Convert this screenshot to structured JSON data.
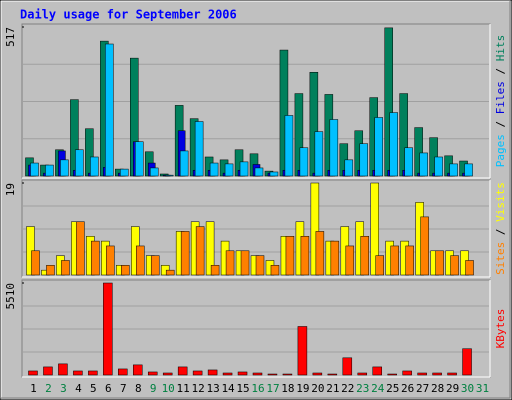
{
  "title": "Daily usage for September 2006",
  "chart_data": [
    {
      "type": "bar",
      "ylim": [
        0,
        517
      ],
      "yticks": [
        517
      ],
      "legend_separator": "/",
      "categories": [
        "1",
        "2",
        "3",
        "4",
        "5",
        "6",
        "7",
        "8",
        "9",
        "10",
        "11",
        "12",
        "13",
        "14",
        "15",
        "16",
        "17",
        "18",
        "19",
        "20",
        "21",
        "22",
        "23",
        "24",
        "25",
        "26",
        "27",
        "28",
        "29",
        "30",
        "31"
      ],
      "category_colors": [
        "#000000",
        "#008040",
        "#008040",
        "#000000",
        "#000000",
        "#000000",
        "#000000",
        "#000000",
        "#008040",
        "#008040",
        "#000000",
        "#000000",
        "#000000",
        "#000000",
        "#000000",
        "#008040",
        "#008040",
        "#000000",
        "#000000",
        "#000000",
        "#000000",
        "#000000",
        "#008040",
        "#008040",
        "#000000",
        "#000000",
        "#000000",
        "#000000",
        "#000000",
        "#008040",
        "#008040"
      ],
      "series": [
        {
          "name": "Hits",
          "color": "#00805c",
          "values": [
            63,
            38,
            91,
            265,
            164,
            468,
            24,
            409,
            84,
            7,
            245,
            199,
            66,
            56,
            91,
            77,
            17,
            437,
            286,
            360,
            283,
            112,
            157,
            272,
            514,
            286,
            168,
            133,
            70,
            52,
            0
          ]
        },
        {
          "name": "Files",
          "color": "#0000e0",
          "values": [
            38,
            10,
            87,
            20,
            10,
            30,
            10,
            119,
            45,
            3,
            157,
            20,
            20,
            10,
            20,
            40,
            10,
            20,
            20,
            10,
            20,
            20,
            20,
            20,
            20,
            20,
            10,
            10,
            10,
            10,
            0
          ]
        },
        {
          "name": "Pages",
          "color": "#00c0ff",
          "values": [
            45,
            38,
            56,
            91,
            66,
            458,
            24,
            119,
            28,
            3,
            87,
            189,
            45,
            42,
            49,
            28,
            14,
            210,
            98,
            154,
            196,
            56,
            112,
            203,
            220,
            98,
            80,
            66,
            42,
            42,
            0
          ]
        }
      ]
    },
    {
      "type": "bar",
      "ylim": [
        0,
        19
      ],
      "yticks": [
        19
      ],
      "legend_separator": "/",
      "series": [
        {
          "name": "Visits",
          "color": "#ffff00",
          "values": [
            10,
            1,
            4,
            11,
            8,
            7,
            2,
            10,
            4,
            2,
            9,
            11,
            11,
            7,
            5,
            4,
            3,
            8,
            11,
            19,
            7,
            10,
            11,
            19,
            7,
            7,
            15,
            5,
            5,
            5,
            0
          ]
        },
        {
          "name": "Sites",
          "color": "#ff8000",
          "values": [
            5,
            2,
            3,
            11,
            7,
            6,
            2,
            6,
            4,
            1,
            9,
            10,
            2,
            5,
            5,
            4,
            2,
            8,
            8,
            9,
            7,
            6,
            8,
            4,
            6,
            6,
            12,
            5,
            4,
            3,
            0
          ]
        }
      ]
    },
    {
      "type": "bar",
      "ylim": [
        0,
        5510
      ],
      "yticks": [
        5510
      ],
      "series": [
        {
          "name": "KBytes",
          "color": "#ff0000",
          "values": [
            242,
            484,
            666,
            242,
            242,
            5510,
            363,
            606,
            182,
            121,
            484,
            242,
            303,
            121,
            182,
            121,
            60,
            60,
            2906,
            121,
            60,
            1029,
            121,
            484,
            60,
            242,
            121,
            121,
            121,
            1574,
            0
          ]
        }
      ]
    }
  ]
}
